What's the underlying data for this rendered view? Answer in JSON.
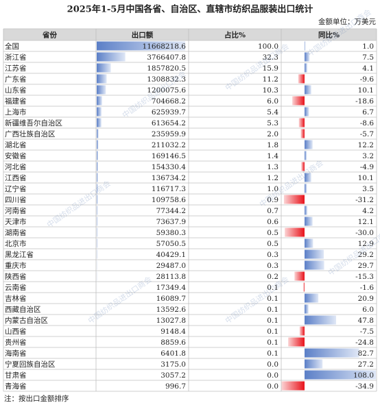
{
  "title": "2025年1-5月中国各省、自治区、直辖市纺织品服装出口统计",
  "unit": "金额单位：万美元",
  "watermark": "中国纺织品进出口商会",
  "table": {
    "headers": [
      "省份",
      "出口额",
      "占比%",
      "同比%"
    ],
    "rows": [
      [
        "全国",
        "11668218.6",
        "100.0",
        "1.0"
      ],
      [
        "浙江省",
        "3766407.8",
        "32.3",
        "7.5"
      ],
      [
        "江苏省",
        "1857820.5",
        "15.9",
        "4.1"
      ],
      [
        "广东省",
        "1308832.3",
        "11.2",
        "-9.6"
      ],
      [
        "山东省",
        "1200075.6",
        "10.3",
        "10.1"
      ],
      [
        "福建省",
        "704668.2",
        "6.0",
        "-18.6"
      ],
      [
        "上海市",
        "625939.7",
        "5.4",
        "6.7"
      ],
      [
        "新疆维吾尔自治区",
        "613654.2",
        "5.3",
        "-8.6"
      ],
      [
        "广西壮族自治区",
        "235959.9",
        "2.0",
        "-5.7"
      ],
      [
        "湖北省",
        "211032.2",
        "1.8",
        "12.2"
      ],
      [
        "安徽省",
        "169146.5",
        "1.4",
        "3.2"
      ],
      [
        "河北省",
        "154330.4",
        "1.3",
        "-4.9"
      ],
      [
        "江西省",
        "136734.2",
        "1.2",
        "10.1"
      ],
      [
        "辽宁省",
        "116717.3",
        "1.0",
        "3.5"
      ],
      [
        "四川省",
        "109758.6",
        "0.9",
        "-31.2"
      ],
      [
        "河南省",
        "77344.2",
        "0.7",
        "4.2"
      ],
      [
        "天津市",
        "73637.9",
        "0.6",
        "12.1"
      ],
      [
        "湖南省",
        "59380.3",
        "0.5",
        "-30.0"
      ],
      [
        "北京市",
        "57050.5",
        "0.5",
        "12.9"
      ],
      [
        "黑龙江省",
        "40429.1",
        "0.3",
        "29.2"
      ],
      [
        "重庆市",
        "29487.0",
        "0.3",
        "29.7"
      ],
      [
        "陕西省",
        "28113.8",
        "0.2",
        "-15.3"
      ],
      [
        "云南省",
        "17349.4",
        "0.1",
        "-1.6"
      ],
      [
        "吉林省",
        "16089.7",
        "0.1",
        "20.9"
      ],
      [
        "西藏自治区",
        "13592.6",
        "0.1",
        "6.0"
      ],
      [
        "内蒙古自治区",
        "13027.8",
        "0.1",
        "47.8"
      ],
      [
        "山西省",
        "9148.4",
        "0.1",
        "-7.5"
      ],
      [
        "贵州省",
        "8859.6",
        "0.1",
        "-24.8"
      ],
      [
        "海南省",
        "6401.8",
        "0.1",
        "82.7"
      ],
      [
        "宁夏回族自治区",
        "3175.0",
        "0.0",
        "27.2"
      ],
      [
        "甘肃省",
        "3057.2",
        "0.0",
        "108.0"
      ],
      [
        "青海省",
        "996.7",
        "0.0",
        "-34.9"
      ]
    ]
  },
  "note": "注：按出口金额排序"
}
